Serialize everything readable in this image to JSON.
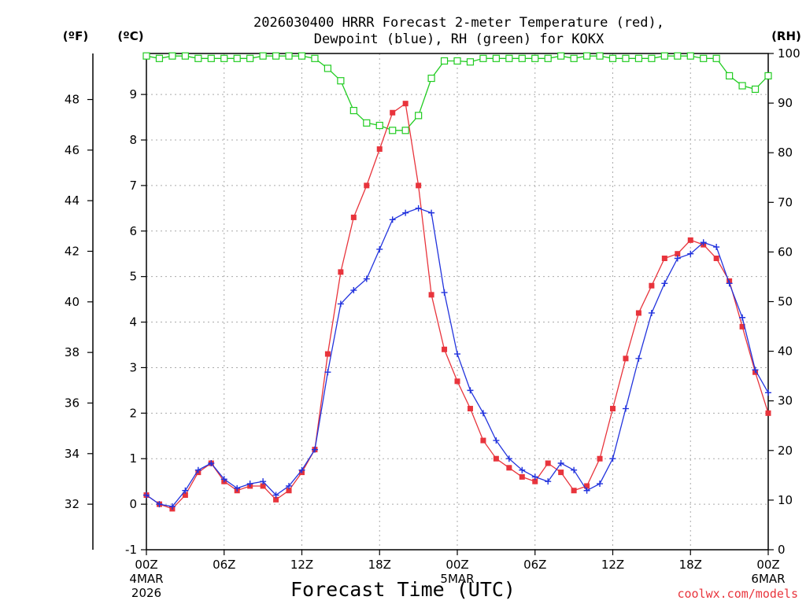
{
  "chart_data": {
    "type": "line",
    "title_line1": "2026030400 HRRR Forecast 2-meter Temperature (red),",
    "title_line2": "Dewpoint (blue), RH (green) for KOKX",
    "unit_f": "(ºF)",
    "unit_c": "(ºC)",
    "unit_rh": "(RH)",
    "xlabel": "Forecast Time (UTC)",
    "credit": "coolwx.com/models",
    "colors": {
      "temperature": "#e8343c",
      "dewpoint": "#2233dd",
      "rh": "#22cc22",
      "grid": "#aaaaaa"
    },
    "grid": true,
    "x_range_hours": [
      0,
      48
    ],
    "x_ticks": [
      {
        "hour": 0,
        "label": "00Z",
        "date": "4MAR",
        "year": "2026"
      },
      {
        "hour": 6,
        "label": "06Z"
      },
      {
        "hour": 12,
        "label": "12Z"
      },
      {
        "hour": 18,
        "label": "18Z"
      },
      {
        "hour": 24,
        "label": "00Z",
        "date": "5MAR"
      },
      {
        "hour": 30,
        "label": "06Z"
      },
      {
        "hour": 36,
        "label": "12Z"
      },
      {
        "hour": 42,
        "label": "18Z"
      },
      {
        "hour": 48,
        "label": "00Z",
        "date": "6MAR"
      }
    ],
    "celsius_axis": {
      "range": [
        -1,
        9.9
      ],
      "ticks": [
        -1,
        0,
        1,
        2,
        3,
        4,
        5,
        6,
        7,
        8,
        9
      ]
    },
    "fahrenheit_axis": {
      "ticks": [
        32,
        34,
        36,
        38,
        40,
        42,
        44,
        46,
        48
      ]
    },
    "rh_axis": {
      "range": [
        0,
        100
      ],
      "ticks": [
        0,
        10,
        20,
        30,
        40,
        50,
        60,
        70,
        80,
        90,
        100
      ]
    },
    "series": [
      {
        "name": "Temperature",
        "units": "C",
        "marker": "filled-square",
        "values": [
          0.2,
          0.0,
          -0.1,
          0.2,
          0.7,
          0.9,
          0.5,
          0.3,
          0.4,
          0.4,
          0.1,
          0.3,
          0.7,
          1.2,
          3.3,
          5.1,
          6.3,
          7.0,
          7.8,
          8.6,
          8.8,
          7.0,
          4.6,
          3.4,
          2.7,
          2.1,
          1.4,
          1.0,
          0.8,
          0.6,
          0.5,
          0.9,
          0.7,
          0.3,
          0.4,
          1.0,
          2.1,
          3.2,
          4.2,
          4.8,
          5.4,
          5.5,
          5.8,
          5.7,
          5.4,
          4.9,
          3.9,
          2.9,
          2.0
        ]
      },
      {
        "name": "Dewpoint",
        "units": "C",
        "marker": "plus",
        "values": [
          0.2,
          0.0,
          -0.05,
          0.3,
          0.75,
          0.9,
          0.55,
          0.35,
          0.45,
          0.5,
          0.2,
          0.4,
          0.75,
          1.2,
          2.9,
          4.4,
          4.7,
          4.95,
          5.6,
          6.25,
          6.4,
          6.5,
          6.4,
          4.65,
          3.3,
          2.5,
          2.0,
          1.4,
          1.0,
          0.75,
          0.6,
          0.5,
          0.9,
          0.75,
          0.3,
          0.45,
          1.0,
          2.1,
          3.2,
          4.2,
          4.85,
          5.4,
          5.5,
          5.75,
          5.65,
          4.85,
          4.1,
          2.95,
          2.45
        ]
      },
      {
        "name": "RH",
        "units": "%",
        "marker": "open-square",
        "values": [
          99.5,
          99.0,
          99.5,
          99.5,
          99.0,
          99.0,
          99.0,
          99.0,
          99.0,
          99.5,
          99.5,
          99.5,
          99.5,
          99.0,
          97.0,
          94.5,
          88.5,
          86.0,
          85.5,
          84.5,
          84.5,
          87.5,
          95.0,
          98.5,
          98.5,
          98.3,
          99.0,
          99.0,
          99.0,
          99.0,
          99.0,
          99.0,
          99.5,
          99.0,
          99.5,
          99.5,
          99.0,
          99.0,
          99.0,
          99.0,
          99.5,
          99.5,
          99.5,
          99.0,
          99.0,
          95.5,
          93.5,
          92.8,
          95.5
        ]
      }
    ]
  }
}
